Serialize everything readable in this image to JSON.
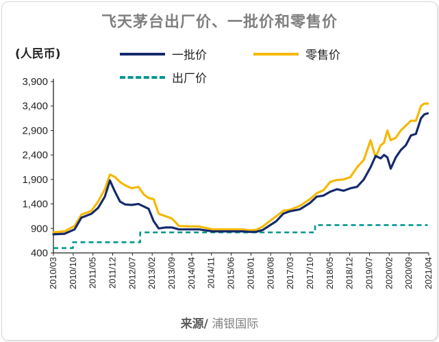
{
  "chart_data": {
    "type": "line",
    "title": "飞天茅台出厂价、一批价和零售价",
    "ylabel": "(人民币)",
    "source_label": "来源/",
    "source_name": "浦银国际",
    "ylim": [
      400,
      3900
    ],
    "yticks": [
      400,
      900,
      1400,
      1900,
      2400,
      2900,
      3400,
      3900
    ],
    "ytick_labels": [
      "400",
      "900",
      "1,400",
      "1,900",
      "2,400",
      "2,900",
      "3,400",
      "3,900"
    ],
    "xlim": [
      2010.17,
      2021.33
    ],
    "xticks": [
      "2010/03",
      "2010/10",
      "2011/05",
      "2011/12",
      "2012/07",
      "2013/02",
      "2013/09",
      "2014/04",
      "2014/11",
      "2015/06",
      "2016/01",
      "2016/08",
      "2017/03",
      "2017/10",
      "2018/05",
      "2018/12",
      "2019/07",
      "2020/02",
      "2020/09",
      "2021/04"
    ],
    "legend": "top",
    "series": [
      {
        "name": "一批价",
        "color": "#152a6b",
        "style": "solid",
        "x": [
          2010.17,
          2010.5,
          2010.8,
          2011.0,
          2011.3,
          2011.5,
          2011.7,
          2011.85,
          2012.0,
          2012.15,
          2012.3,
          2012.5,
          2012.7,
          2012.85,
          2013.0,
          2013.15,
          2013.3,
          2013.5,
          2013.7,
          2013.9,
          2014.2,
          2014.5,
          2014.9,
          2015.2,
          2015.5,
          2015.8,
          2016.0,
          2016.2,
          2016.4,
          2016.6,
          2016.8,
          2017.0,
          2017.2,
          2017.5,
          2017.8,
          2018.0,
          2018.2,
          2018.4,
          2018.6,
          2018.8,
          2019.0,
          2019.2,
          2019.4,
          2019.6,
          2019.75,
          2019.9,
          2020.0,
          2020.1,
          2020.2,
          2020.35,
          2020.5,
          2020.65,
          2020.8,
          2020.95,
          2021.1,
          2021.2,
          2021.3
        ],
        "y": [
          780,
          790,
          880,
          1120,
          1200,
          1320,
          1550,
          1880,
          1650,
          1450,
          1390,
          1380,
          1400,
          1350,
          1300,
          1050,
          900,
          920,
          920,
          880,
          880,
          880,
          840,
          840,
          840,
          840,
          830,
          830,
          870,
          960,
          1050,
          1200,
          1250,
          1290,
          1420,
          1550,
          1570,
          1650,
          1700,
          1670,
          1720,
          1750,
          1900,
          2150,
          2380,
          2330,
          2400,
          2350,
          2120,
          2350,
          2500,
          2600,
          2800,
          2830,
          3150,
          3230,
          3250
        ]
      },
      {
        "name": "零售价",
        "color": "#f5b800",
        "style": "solid",
        "x": [
          2010.17,
          2010.5,
          2010.8,
          2011.0,
          2011.3,
          2011.5,
          2011.7,
          2011.85,
          2012.0,
          2012.15,
          2012.3,
          2012.5,
          2012.7,
          2012.85,
          2013.0,
          2013.15,
          2013.3,
          2013.5,
          2013.7,
          2013.9,
          2014.2,
          2014.5,
          2014.9,
          2015.2,
          2015.5,
          2015.8,
          2016.0,
          2016.2,
          2016.4,
          2016.6,
          2016.8,
          2017.0,
          2017.2,
          2017.5,
          2017.8,
          2018.0,
          2018.2,
          2018.4,
          2018.6,
          2018.8,
          2019.0,
          2019.2,
          2019.4,
          2019.6,
          2019.75,
          2019.9,
          2020.0,
          2020.1,
          2020.2,
          2020.35,
          2020.5,
          2020.65,
          2020.8,
          2020.95,
          2021.1,
          2021.2,
          2021.3
        ],
        "y": [
          820,
          840,
          950,
          1180,
          1260,
          1450,
          1700,
          2000,
          1950,
          1850,
          1780,
          1720,
          1750,
          1600,
          1520,
          1500,
          1200,
          1150,
          1100,
          950,
          940,
          940,
          880,
          880,
          880,
          880,
          860,
          870,
          940,
          1050,
          1150,
          1260,
          1280,
          1360,
          1500,
          1620,
          1680,
          1850,
          1890,
          1900,
          1950,
          2150,
          2300,
          2700,
          2350,
          2600,
          2650,
          2900,
          2700,
          2750,
          2900,
          3000,
          3100,
          3100,
          3400,
          3450,
          3450
        ]
      },
      {
        "name": "出厂价",
        "color": "#00968f",
        "style": "dashed",
        "x": [
          2010.17,
          2010.75,
          2010.75,
          2012.75,
          2012.75,
          2017.95,
          2017.95,
          2021.3
        ],
        "y": [
          500,
          500,
          619,
          619,
          819,
          819,
          969,
          969
        ]
      }
    ]
  }
}
